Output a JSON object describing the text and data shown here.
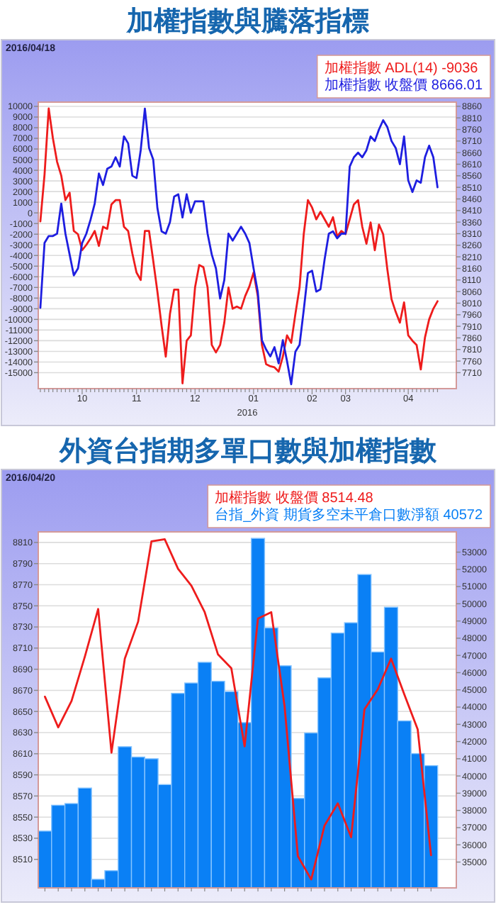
{
  "chart_data": [
    {
      "type": "line",
      "title": "加權指數與騰落指標",
      "annotations": [
        "2016/04/18"
      ],
      "xlabel": "2016",
      "legend": "top",
      "grid": "y",
      "categories": [
        null,
        null,
        null,
        null,
        null,
        null,
        null,
        null,
        null,
        null,
        "10",
        null,
        null,
        null,
        null,
        null,
        null,
        null,
        null,
        null,
        null,
        null,
        null,
        "11",
        null,
        null,
        null,
        null,
        null,
        null,
        null,
        null,
        null,
        null,
        null,
        null,
        null,
        "12",
        null,
        null,
        null,
        null,
        null,
        null,
        null,
        null,
        null,
        null,
        null,
        null,
        null,
        "01",
        null,
        null,
        null,
        null,
        null,
        null,
        null,
        null,
        null,
        null,
        null,
        null,
        null,
        "02",
        null,
        null,
        null,
        null,
        null,
        null,
        null,
        "03",
        null,
        null,
        null,
        null,
        null,
        null,
        null,
        null,
        null,
        null,
        null,
        null,
        null,
        null,
        "04",
        null,
        null,
        null,
        null,
        null,
        null,
        null
      ],
      "ylim": [
        -16500,
        10400
      ],
      "yticks": [
        -15000,
        -14000,
        -13000,
        -12000,
        -11000,
        -10000,
        -9000,
        -8000,
        -7000,
        -6000,
        -5000,
        -4000,
        -3000,
        -2000,
        -1000,
        0,
        1000,
        2000,
        3000,
        4000,
        5000,
        6000,
        7000,
        8000,
        9000,
        10000
      ],
      "y2lim": [
        7641,
        8878
      ],
      "y2ticks": [
        7710,
        7760,
        7810,
        7860,
        7910,
        7960,
        8010,
        8060,
        8110,
        8160,
        8210,
        8260,
        8310,
        8360,
        8410,
        8460,
        8510,
        8560,
        8610,
        8660,
        8710,
        8760,
        8810,
        8860
      ],
      "series": [
        {
          "name": "加權指數 ADL(14) -9036",
          "color": "#ee1c1c",
          "axis": "y",
          "values": [
            -800,
            3600,
            9800,
            7000,
            4800,
            3500,
            1200,
            1900,
            -1700,
            -2000,
            -3500,
            -3000,
            -2400,
            -1700,
            -3100,
            -1300,
            -1500,
            800,
            1200,
            1200,
            -1300,
            -1700,
            -3800,
            -5600,
            -6300,
            -1700,
            -1700,
            -4500,
            -7400,
            -10600,
            -13500,
            -9500,
            -7200,
            -7200,
            -16000,
            -12000,
            -11500,
            -7000,
            -4900,
            -5100,
            -7000,
            -12400,
            -13100,
            -12400,
            -10300,
            -7000,
            -9000,
            -8800,
            -9000,
            -7800,
            -6900,
            -5600,
            -7800,
            -12400,
            -14200,
            -14400,
            -14500,
            -14900,
            -13500,
            -11500,
            -12200,
            -9500,
            -7000,
            -2000,
            1200,
            500,
            -600,
            100,
            -600,
            -1300,
            -400,
            -2200,
            -1700,
            -2000,
            -600,
            800,
            1200,
            -1300,
            -2900,
            -900,
            -3500,
            -1100,
            -2000,
            -5300,
            -8100,
            -9300,
            -10300,
            -8400,
            -11500,
            -12000,
            -12400,
            -14700,
            -11700,
            -10000,
            -9000,
            -8300
          ]
        },
        {
          "name": "加權指數 收盤價 8666.01",
          "color": "#1e1ee0",
          "axis": "y2",
          "values": [
            7990,
            8270,
            8300,
            8300,
            8310,
            8440,
            8310,
            8220,
            8130,
            8160,
            8270,
            8310,
            8370,
            8440,
            8570,
            8520,
            8590,
            8600,
            8640,
            8600,
            8730,
            8700,
            8560,
            8550,
            8670,
            8850,
            8680,
            8630,
            8420,
            8320,
            8310,
            8360,
            8470,
            8480,
            8380,
            8480,
            8400,
            8450,
            8450,
            8450,
            8310,
            8220,
            8160,
            8030,
            8110,
            8310,
            8280,
            8310,
            8340,
            8310,
            8270,
            8160,
            8060,
            7850,
            7810,
            7780,
            7820,
            7750,
            7850,
            7760,
            7660,
            7800,
            7830,
            7980,
            8140,
            8150,
            8060,
            8070,
            8200,
            8310,
            8320,
            8290,
            8310,
            8310,
            8600,
            8640,
            8660,
            8640,
            8670,
            8730,
            8710,
            8760,
            8800,
            8770,
            8710,
            8680,
            8610,
            8730,
            8540,
            8490,
            8540,
            8530,
            8640,
            8690,
            8640,
            8510
          ]
        }
      ]
    },
    {
      "type": "bar",
      "title": "外資台指期多單口數與加權指數",
      "annotations": [
        "2016/04/20"
      ],
      "legend": "top",
      "grid": "y",
      "categories": [
        null,
        null,
        null,
        null,
        null,
        null,
        null,
        null,
        null,
        null,
        null,
        null,
        null,
        null,
        null,
        null,
        null,
        null,
        null,
        null,
        null,
        null,
        null,
        null,
        null,
        null,
        null,
        null,
        null,
        null
      ],
      "ylim": [
        8483,
        8820
      ],
      "yticks": [
        8510,
        8530,
        8550,
        8570,
        8590,
        8610,
        8630,
        8650,
        8670,
        8690,
        8710,
        8730,
        8750,
        8770,
        8790,
        8810
      ],
      "y2lim": [
        33500,
        54175
      ],
      "y2ticks": [
        35000,
        36000,
        37000,
        38000,
        39000,
        40000,
        41000,
        42000,
        43000,
        44000,
        45000,
        46000,
        47000,
        48000,
        49000,
        50000,
        51000,
        52000,
        53000
      ],
      "series": [
        {
          "name": "加權指數 收盤價 8514.48",
          "type": "line",
          "color": "#ee1c1c",
          "axis": "y",
          "values": [
            8664,
            8635,
            8660,
            8702,
            8747,
            8611,
            8700,
            8735,
            8811,
            8813,
            8785,
            8769,
            8744,
            8704,
            8691,
            8617,
            8738,
            8744,
            8655,
            8513,
            8491,
            8542,
            8563,
            8531,
            8652,
            8671,
            8700,
            8666,
            8633,
            8514
          ]
        },
        {
          "name": "台指_外資 期貨多空未平倉口數淨額 40572",
          "color": "#0a80f5",
          "axis": "y2",
          "values": [
            36800,
            38300,
            38400,
            39300,
            34000,
            34500,
            41700,
            41100,
            41000,
            39500,
            44800,
            45400,
            46600,
            45500,
            44900,
            43100,
            53800,
            48600,
            46400,
            38700,
            42500,
            45700,
            48300,
            48900,
            51700,
            47200,
            49800,
            43200,
            41300,
            40600
          ]
        }
      ]
    }
  ]
}
